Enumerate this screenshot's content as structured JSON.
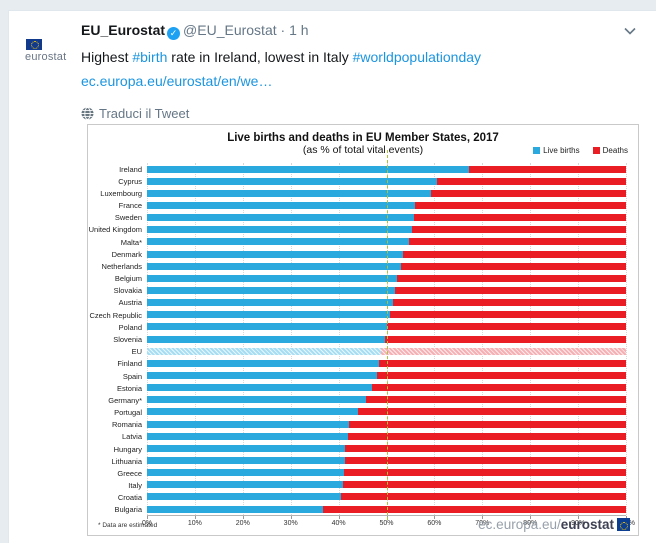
{
  "tweet": {
    "author_name": "EU_Eurostat",
    "handle": "@EU_Eurostat",
    "separator": "·",
    "time": "1 h",
    "avatar_logo_text": "eurostat",
    "text_parts": [
      {
        "type": "plain",
        "t": "Highest "
      },
      {
        "type": "hashtag",
        "t": "#birth"
      },
      {
        "type": "plain",
        "t": " rate in Ireland, lowest in Italy "
      },
      {
        "type": "hashtag",
        "t": "#worldpopulationday"
      }
    ],
    "link_text": "ec.europa.eu/eurostat/en/we…",
    "translate_label": "Traduci il Tweet"
  },
  "colors": {
    "births": "#29a9dd",
    "deaths": "#ea1d25",
    "reference_line": "#a8c43a",
    "twitter_link": "#1b95e0",
    "verified_badge": "#1da1f2"
  },
  "chart_data": {
    "type": "bar",
    "orientation": "horizontal-stacked",
    "title": "Live births and deaths in EU Member States, 2017",
    "subtitle": "(as % of total vital events)",
    "legend": [
      {
        "label": "Live births",
        "color": "#29a9dd"
      },
      {
        "label": "Deaths",
        "color": "#ea1d25"
      }
    ],
    "legend_position": "top-right",
    "xlim": [
      0,
      100
    ],
    "x_ticks": [
      "0%",
      "10%",
      "20%",
      "30%",
      "40%",
      "50%",
      "60%",
      "70%",
      "80%",
      "90%",
      "100%"
    ],
    "grid": "vertical-dotted",
    "reference_line": {
      "value": 50,
      "style": "dashed",
      "color": "#a8c43a"
    },
    "categories": [
      "Ireland",
      "Cyprus",
      "Luxembourg",
      "France",
      "Sweden",
      "United Kingdom",
      "Malta*",
      "Denmark",
      "Netherlands",
      "Belgium",
      "Slovakia",
      "Austria",
      "Czech Republic",
      "Poland",
      "Slovenia",
      "EU",
      "Finland",
      "Spain",
      "Estonia",
      "Germany*",
      "Portugal",
      "Romania",
      "Latvia",
      "Hungary",
      "Lithuania",
      "Greece",
      "Italy",
      "Croatia",
      "Bulgaria"
    ],
    "series": [
      {
        "name": "Live births",
        "values": [
          67.2,
          60.6,
          59.2,
          55.9,
          55.7,
          55.4,
          54.7,
          53.5,
          53.1,
          52.2,
          51.8,
          51.3,
          50.7,
          50.0,
          49.7,
          48.9,
          48.4,
          48.0,
          47.0,
          45.7,
          44.0,
          42.1,
          42.0,
          41.4,
          41.3,
          41.2,
          41.0,
          40.6,
          36.8
        ]
      },
      {
        "name": "Deaths",
        "values": [
          32.8,
          39.4,
          40.8,
          44.1,
          44.3,
          44.6,
          45.3,
          46.5,
          46.9,
          47.8,
          48.2,
          48.7,
          49.3,
          50.0,
          50.3,
          51.1,
          51.6,
          52.0,
          53.0,
          54.3,
          56.0,
          57.9,
          58.0,
          58.6,
          58.7,
          58.8,
          59.0,
          59.4,
          63.2
        ]
      }
    ],
    "hatched_category": "EU",
    "footnote": "* Data are estimated",
    "watermark_prefix": "ec.europa.eu/",
    "watermark_bold": "eurostat"
  }
}
